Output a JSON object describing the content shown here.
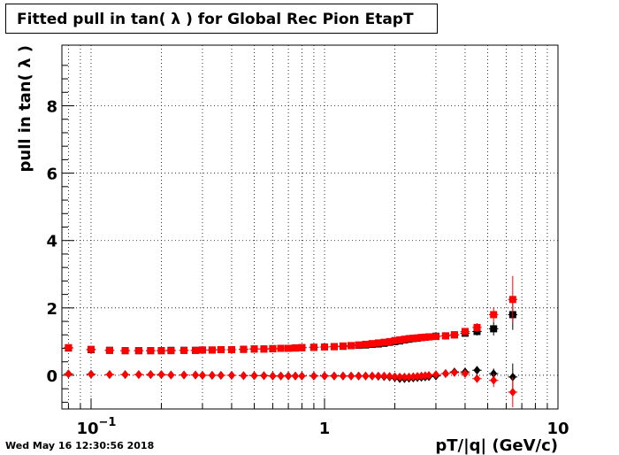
{
  "title": "Fitted pull in tan( λ ) for Global Rec Pion EtapT",
  "footer_timestamp": "Wed May 16 12:30:56 2018",
  "chart_data": {
    "type": "scatter",
    "title": "Fitted pull in tan( λ ) for Global Rec Pion EtapT",
    "xlabel": "pT/|q| (GeV/c)",
    "ylabel": "pull in tan( λ )",
    "xscale": "log",
    "xlim": [
      0.075,
      10
    ],
    "ylim": [
      -1,
      9.8
    ],
    "grid": true,
    "x_tick_labels": [
      "10⁻¹",
      "1",
      "10"
    ],
    "y_tick_labels": [
      "0",
      "2",
      "4",
      "6",
      "8"
    ],
    "series": [
      {
        "color": "#000000",
        "marker": "square",
        "x": [
          0.08,
          0.1,
          0.12,
          0.14,
          0.16,
          0.18,
          0.2,
          0.22,
          0.25,
          0.28,
          0.3,
          0.33,
          0.36,
          0.4,
          0.45,
          0.5,
          0.55,
          0.6,
          0.65,
          0.7,
          0.75,
          0.8,
          0.9,
          1.0,
          1.1,
          1.2,
          1.3,
          1.4,
          1.5,
          1.6,
          1.7,
          1.8,
          1.9,
          2.0,
          2.1,
          2.2,
          2.3,
          2.4,
          2.5,
          2.6,
          2.7,
          2.8,
          3.0,
          3.3,
          3.6,
          4.0,
          4.5,
          5.3,
          6.4
        ],
        "y": [
          0.81,
          0.76,
          0.74,
          0.73,
          0.73,
          0.73,
          0.73,
          0.74,
          0.74,
          0.74,
          0.75,
          0.75,
          0.76,
          0.76,
          0.77,
          0.78,
          0.78,
          0.79,
          0.8,
          0.8,
          0.81,
          0.82,
          0.83,
          0.84,
          0.85,
          0.86,
          0.88,
          0.89,
          0.9,
          0.92,
          0.93,
          0.95,
          0.98,
          1.0,
          1.02,
          1.05,
          1.07,
          1.09,
          1.1,
          1.12,
          1.13,
          1.14,
          1.16,
          1.17,
          1.2,
          1.25,
          1.3,
          1.38,
          1.8
        ],
        "y_err": [
          0.05,
          0.04,
          0.03,
          0.03,
          0.03,
          0.03,
          0.03,
          0.03,
          0.02,
          0.02,
          0.02,
          0.02,
          0.02,
          0.02,
          0.02,
          0.02,
          0.02,
          0.02,
          0.02,
          0.02,
          0.02,
          0.02,
          0.02,
          0.02,
          0.02,
          0.02,
          0.02,
          0.03,
          0.03,
          0.03,
          0.03,
          0.03,
          0.03,
          0.03,
          0.03,
          0.04,
          0.04,
          0.04,
          0.04,
          0.05,
          0.05,
          0.05,
          0.06,
          0.07,
          0.08,
          0.1,
          0.12,
          0.2,
          0.45
        ]
      },
      {
        "color": "#ff0000",
        "marker": "square",
        "x": [
          0.08,
          0.1,
          0.12,
          0.14,
          0.16,
          0.18,
          0.2,
          0.22,
          0.25,
          0.28,
          0.3,
          0.33,
          0.36,
          0.4,
          0.45,
          0.5,
          0.55,
          0.6,
          0.65,
          0.7,
          0.75,
          0.8,
          0.9,
          1.0,
          1.1,
          1.2,
          1.3,
          1.4,
          1.5,
          1.6,
          1.7,
          1.8,
          1.9,
          2.0,
          2.1,
          2.2,
          2.3,
          2.4,
          2.5,
          2.6,
          2.7,
          2.8,
          3.0,
          3.3,
          3.6,
          4.0,
          4.5,
          5.3,
          6.4
        ],
        "y": [
          0.82,
          0.77,
          0.74,
          0.73,
          0.73,
          0.73,
          0.73,
          0.73,
          0.74,
          0.74,
          0.75,
          0.75,
          0.76,
          0.76,
          0.77,
          0.78,
          0.78,
          0.79,
          0.8,
          0.8,
          0.81,
          0.82,
          0.83,
          0.84,
          0.85,
          0.87,
          0.88,
          0.9,
          0.92,
          0.94,
          0.96,
          0.98,
          1.0,
          1.03,
          1.05,
          1.07,
          1.09,
          1.1,
          1.11,
          1.12,
          1.13,
          1.14,
          1.15,
          1.17,
          1.2,
          1.3,
          1.42,
          1.8,
          2.25
        ],
        "y_err": [
          0.05,
          0.04,
          0.03,
          0.03,
          0.03,
          0.03,
          0.03,
          0.03,
          0.02,
          0.02,
          0.02,
          0.02,
          0.02,
          0.02,
          0.02,
          0.02,
          0.02,
          0.02,
          0.02,
          0.02,
          0.02,
          0.02,
          0.02,
          0.02,
          0.02,
          0.02,
          0.02,
          0.03,
          0.03,
          0.03,
          0.03,
          0.03,
          0.03,
          0.03,
          0.03,
          0.04,
          0.04,
          0.04,
          0.04,
          0.05,
          0.05,
          0.05,
          0.06,
          0.07,
          0.08,
          0.1,
          0.13,
          0.22,
          0.7
        ]
      },
      {
        "color": "#000000",
        "marker": "diamond",
        "x": [
          0.08,
          0.1,
          0.12,
          0.14,
          0.16,
          0.18,
          0.2,
          0.22,
          0.25,
          0.28,
          0.3,
          0.33,
          0.36,
          0.4,
          0.45,
          0.5,
          0.55,
          0.6,
          0.65,
          0.7,
          0.75,
          0.8,
          0.9,
          1.0,
          1.1,
          1.2,
          1.3,
          1.4,
          1.5,
          1.6,
          1.7,
          1.8,
          1.9,
          2.0,
          2.1,
          2.2,
          2.3,
          2.4,
          2.5,
          2.6,
          2.7,
          2.8,
          3.0,
          3.3,
          3.6,
          4.0,
          4.5,
          5.3,
          6.4
        ],
        "y": [
          0.04,
          0.03,
          0.02,
          0.02,
          0.02,
          0.02,
          0.02,
          0.01,
          0.01,
          0.01,
          0.0,
          0.0,
          0.0,
          0.0,
          -0.01,
          -0.01,
          -0.01,
          -0.02,
          -0.02,
          -0.02,
          -0.02,
          -0.02,
          -0.02,
          -0.02,
          -0.02,
          -0.02,
          -0.02,
          -0.02,
          -0.02,
          -0.02,
          -0.03,
          -0.04,
          -0.05,
          -0.07,
          -0.1,
          -0.1,
          -0.09,
          -0.08,
          -0.07,
          -0.06,
          -0.05,
          -0.04,
          -0.02,
          0.05,
          0.1,
          0.1,
          0.15,
          0.05,
          -0.05
        ],
        "y_err": [
          0.03,
          0.02,
          0.02,
          0.02,
          0.02,
          0.02,
          0.02,
          0.02,
          0.02,
          0.02,
          0.02,
          0.02,
          0.02,
          0.02,
          0.02,
          0.02,
          0.02,
          0.02,
          0.02,
          0.02,
          0.02,
          0.02,
          0.02,
          0.02,
          0.02,
          0.02,
          0.02,
          0.02,
          0.02,
          0.02,
          0.02,
          0.02,
          0.03,
          0.03,
          0.03,
          0.03,
          0.03,
          0.03,
          0.03,
          0.04,
          0.04,
          0.04,
          0.05,
          0.05,
          0.06,
          0.08,
          0.1,
          0.15,
          0.4
        ]
      },
      {
        "color": "#ff0000",
        "marker": "diamond",
        "x": [
          0.08,
          0.1,
          0.12,
          0.14,
          0.16,
          0.18,
          0.2,
          0.22,
          0.25,
          0.28,
          0.3,
          0.33,
          0.36,
          0.4,
          0.45,
          0.5,
          0.55,
          0.6,
          0.65,
          0.7,
          0.75,
          0.8,
          0.9,
          1.0,
          1.1,
          1.2,
          1.3,
          1.4,
          1.5,
          1.6,
          1.7,
          1.8,
          1.9,
          2.0,
          2.1,
          2.2,
          2.3,
          2.4,
          2.5,
          2.6,
          2.7,
          2.8,
          3.0,
          3.3,
          3.6,
          4.0,
          4.5,
          5.3,
          6.4
        ],
        "y": [
          0.04,
          0.03,
          0.02,
          0.02,
          0.02,
          0.02,
          0.02,
          0.01,
          0.01,
          0.01,
          0.0,
          0.0,
          0.0,
          0.0,
          -0.01,
          -0.01,
          -0.01,
          -0.02,
          -0.02,
          -0.02,
          -0.02,
          -0.02,
          -0.02,
          -0.02,
          -0.02,
          -0.02,
          -0.02,
          -0.02,
          -0.02,
          -0.02,
          -0.02,
          -0.02,
          -0.03,
          -0.04,
          -0.05,
          -0.05,
          -0.05,
          -0.04,
          -0.03,
          -0.02,
          -0.01,
          0.0,
          0.02,
          0.05,
          0.08,
          0.05,
          -0.1,
          -0.15,
          -0.5
        ],
        "y_err": [
          0.03,
          0.02,
          0.02,
          0.02,
          0.02,
          0.02,
          0.02,
          0.02,
          0.02,
          0.02,
          0.02,
          0.02,
          0.02,
          0.02,
          0.02,
          0.02,
          0.02,
          0.02,
          0.02,
          0.02,
          0.02,
          0.02,
          0.02,
          0.02,
          0.02,
          0.02,
          0.02,
          0.02,
          0.02,
          0.02,
          0.02,
          0.02,
          0.03,
          0.03,
          0.03,
          0.03,
          0.03,
          0.03,
          0.03,
          0.04,
          0.04,
          0.04,
          0.05,
          0.05,
          0.06,
          0.08,
          0.12,
          0.2,
          0.45
        ]
      }
    ]
  }
}
